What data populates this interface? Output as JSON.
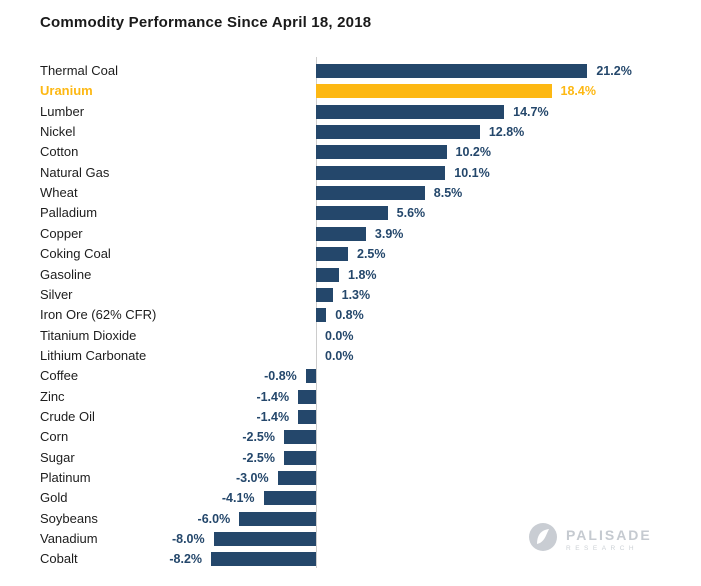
{
  "title": "Commodity Performance Since April 18, 2018",
  "colors": {
    "bar": "#24476B",
    "highlight": "#FDB813",
    "value_text": "#24476B",
    "highlight_text": "#FDB813",
    "axis_line": "#CCCCCC",
    "watermark": "#C5CAD0"
  },
  "watermark": {
    "brand": "PALISADE",
    "sub": "RESEARCH",
    "icon": "palisade-circle-logo"
  },
  "chart_data": {
    "type": "bar",
    "orientation": "horizontal",
    "title": "Commodity Performance Since April 18, 2018",
    "xlabel": "",
    "ylabel": "",
    "xlim": [
      -10,
      23
    ],
    "grid": false,
    "legend": false,
    "zero_axis_line": true,
    "highlight_index": 1,
    "bar_color": "#24476B",
    "highlight_color": "#FDB813",
    "categories": [
      "Thermal Coal",
      "Uranium",
      "Lumber",
      "Nickel",
      "Cotton",
      "Natural Gas",
      "Wheat",
      "Palladium",
      "Copper",
      "Coking Coal",
      "Gasoline",
      "Silver",
      "Iron Ore (62% CFR)",
      "Titanium Dioxide",
      "Lithium Carbonate",
      "Coffee",
      "Zinc",
      "Crude Oil",
      "Corn",
      "Sugar",
      "Platinum",
      "Gold",
      "Soybeans",
      "Vanadium",
      "Cobalt"
    ],
    "values": [
      21.2,
      18.4,
      14.7,
      12.8,
      10.2,
      10.1,
      8.5,
      5.6,
      3.9,
      2.5,
      1.8,
      1.3,
      0.8,
      0.0,
      0.0,
      -0.8,
      -1.4,
      -1.4,
      -2.5,
      -2.5,
      -3.0,
      -4.1,
      -6.0,
      -8.0,
      -8.2
    ],
    "labels": [
      "21.2%",
      "18.4%",
      "14.7%",
      "12.8%",
      "10.2%",
      "10.1%",
      "8.5%",
      "5.6%",
      "3.9%",
      "2.5%",
      "1.8%",
      "1.3%",
      "0.8%",
      "0.0%",
      "0.0%",
      "-0.8%",
      "-1.4%",
      "-1.4%",
      "-2.5%",
      "-2.5%",
      "-3.0%",
      "-4.1%",
      "-6.0%",
      "-8.0%",
      "-8.2%"
    ]
  }
}
